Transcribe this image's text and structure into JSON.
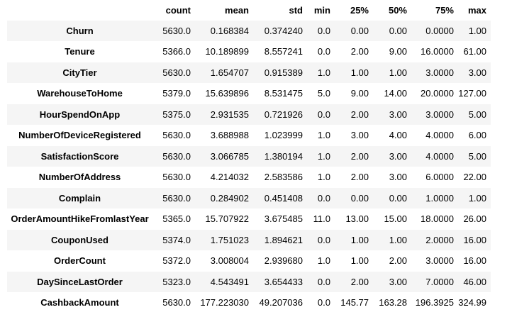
{
  "table": {
    "index_header": "",
    "columns": [
      "count",
      "mean",
      "std",
      "min",
      "25%",
      "50%",
      "75%",
      "max"
    ],
    "rows": [
      {
        "label": "Churn",
        "values": [
          "5630.0",
          "0.168384",
          "0.374240",
          "0.0",
          "0.00",
          "0.00",
          "0.0000",
          "1.00"
        ]
      },
      {
        "label": "Tenure",
        "values": [
          "5366.0",
          "10.189899",
          "8.557241",
          "0.0",
          "2.00",
          "9.00",
          "16.0000",
          "61.00"
        ]
      },
      {
        "label": "CityTier",
        "values": [
          "5630.0",
          "1.654707",
          "0.915389",
          "1.0",
          "1.00",
          "1.00",
          "3.0000",
          "3.00"
        ]
      },
      {
        "label": "WarehouseToHome",
        "values": [
          "5379.0",
          "15.639896",
          "8.531475",
          "5.0",
          "9.00",
          "14.00",
          "20.0000",
          "127.00"
        ]
      },
      {
        "label": "HourSpendOnApp",
        "values": [
          "5375.0",
          "2.931535",
          "0.721926",
          "0.0",
          "2.00",
          "3.00",
          "3.0000",
          "5.00"
        ]
      },
      {
        "label": "NumberOfDeviceRegistered",
        "values": [
          "5630.0",
          "3.688988",
          "1.023999",
          "1.0",
          "3.00",
          "4.00",
          "4.0000",
          "6.00"
        ]
      },
      {
        "label": "SatisfactionScore",
        "values": [
          "5630.0",
          "3.066785",
          "1.380194",
          "1.0",
          "2.00",
          "3.00",
          "4.0000",
          "5.00"
        ]
      },
      {
        "label": "NumberOfAddress",
        "values": [
          "5630.0",
          "4.214032",
          "2.583586",
          "1.0",
          "2.00",
          "3.00",
          "6.0000",
          "22.00"
        ]
      },
      {
        "label": "Complain",
        "values": [
          "5630.0",
          "0.284902",
          "0.451408",
          "0.0",
          "0.00",
          "0.00",
          "1.0000",
          "1.00"
        ]
      },
      {
        "label": "OrderAmountHikeFromlastYear",
        "values": [
          "5365.0",
          "15.707922",
          "3.675485",
          "11.0",
          "13.00",
          "15.00",
          "18.0000",
          "26.00"
        ]
      },
      {
        "label": "CouponUsed",
        "values": [
          "5374.0",
          "1.751023",
          "1.894621",
          "0.0",
          "1.00",
          "1.00",
          "2.0000",
          "16.00"
        ]
      },
      {
        "label": "OrderCount",
        "values": [
          "5372.0",
          "3.008004",
          "2.939680",
          "1.0",
          "1.00",
          "2.00",
          "3.0000",
          "16.00"
        ]
      },
      {
        "label": "DaySinceLastOrder",
        "values": [
          "5323.0",
          "4.543491",
          "3.654433",
          "0.0",
          "2.00",
          "3.00",
          "7.0000",
          "46.00"
        ]
      },
      {
        "label": "CashbackAmount",
        "values": [
          "5630.0",
          "177.223030",
          "49.207036",
          "0.0",
          "145.77",
          "163.28",
          "196.3925",
          "324.99"
        ]
      }
    ]
  }
}
